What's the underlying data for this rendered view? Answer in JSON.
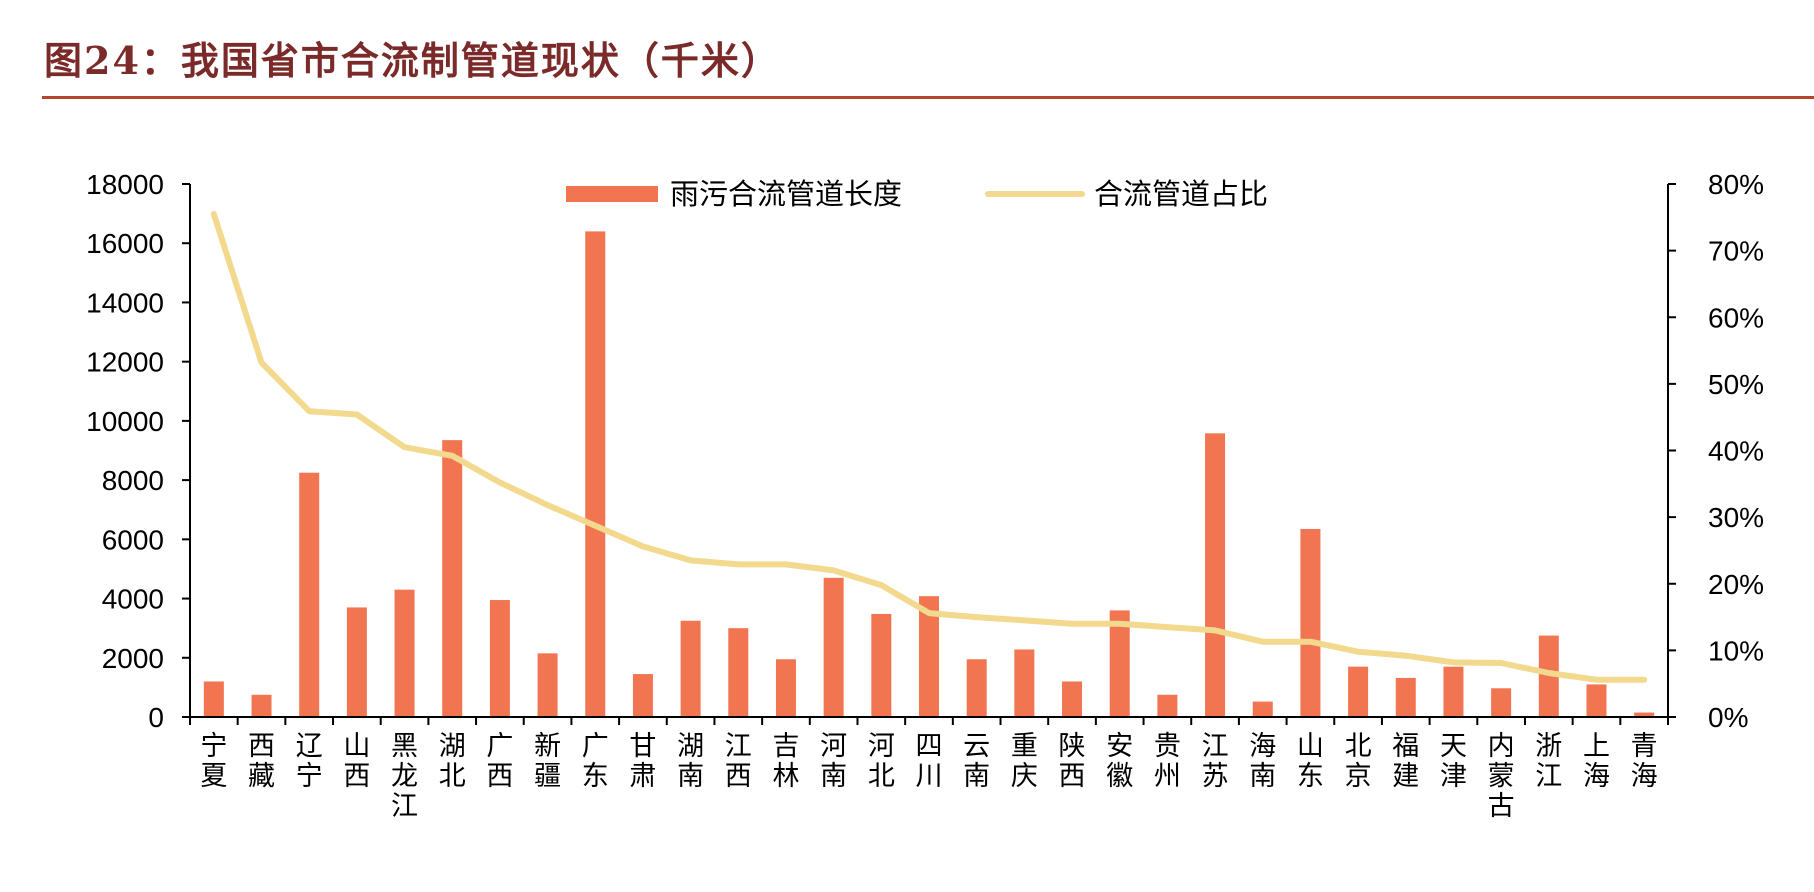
{
  "title": "图24：我国省市合流制管道现状（千米）",
  "colors": {
    "bar": "#f07550",
    "line": "#f2d98e",
    "title": "#7a2a28",
    "rule": "#b5432f"
  },
  "chart_data": {
    "type": "bar+line",
    "categories": [
      "宁夏",
      "西藏",
      "辽宁",
      "山西",
      "黑龙江",
      "湖北",
      "广西",
      "新疆",
      "广东",
      "甘肃",
      "湖南",
      "江西",
      "吉林",
      "河南",
      "河北",
      "四川",
      "云南",
      "重庆",
      "陕西",
      "安徽",
      "贵州",
      "江苏",
      "海南",
      "山东",
      "北京",
      "福建",
      "天津",
      "内蒙古",
      "浙江",
      "上海",
      "青海"
    ],
    "series": [
      {
        "name": "雨污合流管道长度",
        "type": "bar",
        "axis": "left",
        "values": [
          1200,
          750,
          8250,
          3700,
          4300,
          9350,
          3950,
          2150,
          16400,
          1450,
          3250,
          3000,
          1950,
          4700,
          3480,
          4080,
          1950,
          2280,
          1200,
          3600,
          750,
          9580,
          520,
          6350,
          1700,
          1320,
          1700,
          970,
          2750,
          1100,
          150
        ]
      },
      {
        "name": "合流管道占比",
        "type": "line",
        "axis": "right",
        "values": [
          0.755,
          0.532,
          0.459,
          0.454,
          0.405,
          0.392,
          0.352,
          0.318,
          0.287,
          0.256,
          0.235,
          0.229,
          0.229,
          0.22,
          0.198,
          0.156,
          0.15,
          0.145,
          0.14,
          0.14,
          0.135,
          0.13,
          0.113,
          0.113,
          0.098,
          0.092,
          0.082,
          0.081,
          0.066,
          0.056,
          0.056
        ]
      }
    ],
    "y_left": {
      "min": 0,
      "max": 18000,
      "step": 2000,
      "tick_labels": [
        "0",
        "2000",
        "4000",
        "6000",
        "8000",
        "10000",
        "12000",
        "14000",
        "16000",
        "18000"
      ]
    },
    "y_right": {
      "min": 0,
      "max": 0.8,
      "step": 0.1,
      "tick_labels": [
        "0%",
        "10%",
        "20%",
        "30%",
        "40%",
        "50%",
        "60%",
        "70%",
        "80%"
      ]
    },
    "legend": {
      "position": "top",
      "labels": [
        "雨污合流管道长度",
        "合流管道占比"
      ]
    },
    "grid": false
  }
}
